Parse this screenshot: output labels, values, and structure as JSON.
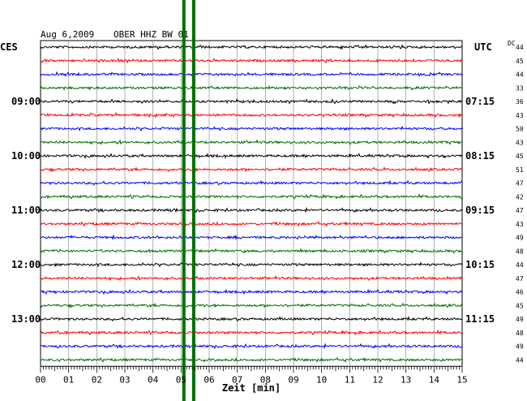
{
  "header": {
    "date": "Aug 6,2009",
    "station": "OBER HHZ BW 01",
    "left_zone": "CES",
    "right_zone": "UTC",
    "dc_label": "DC"
  },
  "chart_data": {
    "type": "line",
    "title": "Aug 6,2009   OBER HHZ BW 01",
    "xlabel": "Zeit [min]",
    "x_ticks": [
      "00",
      "01",
      "02",
      "03",
      "04",
      "05",
      "06",
      "07",
      "08",
      "09",
      "10",
      "11",
      "12",
      "13",
      "14",
      "15"
    ],
    "xlim": [
      0,
      15
    ],
    "trace_count": 24,
    "trace_colors": [
      "#000000",
      "#ff0000",
      "#0000ff",
      "#007000"
    ],
    "left_hour_labels": [
      {
        "trace": 4,
        "text": "09:00"
      },
      {
        "trace": 8,
        "text": "10:00"
      },
      {
        "trace": 12,
        "text": "11:00"
      },
      {
        "trace": 16,
        "text": "12:00"
      },
      {
        "trace": 20,
        "text": "13:00"
      }
    ],
    "right_hour_labels": [
      {
        "trace": 4,
        "text": "07:15"
      },
      {
        "trace": 8,
        "text": "08:15"
      },
      {
        "trace": 12,
        "text": "09:15"
      },
      {
        "trace": 16,
        "text": "10:15"
      },
      {
        "trace": 20,
        "text": "11:15"
      }
    ],
    "dc_values": [
      "44",
      "45",
      "44",
      "33",
      "36",
      "43",
      "50",
      "43",
      "45",
      "51",
      "47",
      "42",
      "47",
      "43",
      "49",
      "48",
      "44",
      "47",
      "46",
      "45",
      "49",
      "48",
      "49",
      "44"
    ],
    "event_markers_min": [
      5.1,
      5.45
    ],
    "event_marker_color": "#007000"
  }
}
